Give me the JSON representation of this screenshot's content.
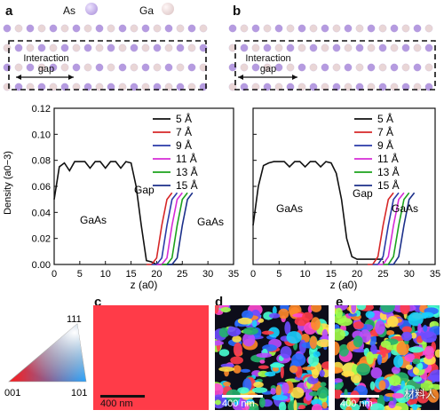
{
  "panels": {
    "a": "a",
    "b": "b",
    "c": "c",
    "d": "d",
    "e": "e"
  },
  "atoms": {
    "as_label": "As",
    "ga_label": "Ga",
    "as_color": "#b59be0",
    "ga_color": "#e9d6d6",
    "interaction_gap_line1": "Interaction",
    "interaction_gap_line2": "gap"
  },
  "plot_common": {
    "x_ticks": [
      "0",
      "5",
      "10",
      "15",
      "20",
      "25",
      "30",
      "35"
    ],
    "y_ticks": [
      "0.00",
      "0.02",
      "0.04",
      "0.06",
      "0.08",
      "0.10",
      "0.12"
    ],
    "xlabel_left": "z (a",
    "xlabel_sub": "0",
    "xlabel_right": ")",
    "ylabel": "Density (a",
    "ylabel_sub": "0",
    "ylabel_sup": "−3",
    "ylabel_end": ")",
    "gap_text": "Gap",
    "gaas_text": "GaAs"
  },
  "chart_data": [
    {
      "type": "line",
      "title": "",
      "xlabel": "z (a0)",
      "ylabel": "Density (a0^-3)",
      "xlim": [
        0,
        35
      ],
      "ylim": [
        0,
        0.12
      ],
      "series": [
        {
          "name": "5 Å",
          "color": "#111111",
          "x": [
            0,
            1,
            2,
            3,
            4,
            5,
            6,
            7,
            8,
            9,
            10,
            11,
            12,
            13,
            14,
            15,
            16,
            17,
            18,
            19,
            20,
            21,
            22,
            23,
            24,
            25
          ],
          "y": [
            0.05,
            0.075,
            0.078,
            0.072,
            0.079,
            0.079,
            0.079,
            0.074,
            0.079,
            0.079,
            0.074,
            0.079,
            0.079,
            0.074,
            0.079,
            0.078,
            0.06,
            0.03,
            0.003,
            0.002,
            0.0,
            0.0,
            0.0,
            0.0,
            0.0,
            0.0
          ]
        },
        {
          "name": "7 Å",
          "color": "#d62728",
          "x": [
            18,
            19,
            20,
            21,
            22,
            23
          ],
          "y": [
            0.0,
            0.0,
            0.005,
            0.03,
            0.05,
            0.055
          ]
        },
        {
          "name": "9 Å",
          "color": "#2a3aa8",
          "x": [
            19,
            20,
            21,
            22,
            23,
            24
          ],
          "y": [
            0.0,
            0.0,
            0.005,
            0.03,
            0.05,
            0.055
          ]
        },
        {
          "name": "11 Å",
          "color": "#d62bd6",
          "x": [
            20,
            21,
            22,
            23,
            24,
            25
          ],
          "y": [
            0.0,
            0.0,
            0.005,
            0.03,
            0.05,
            0.055
          ]
        },
        {
          "name": "13 Å",
          "color": "#1ca21c",
          "x": [
            21,
            22,
            23,
            24,
            25,
            26
          ],
          "y": [
            0.0,
            0.0,
            0.005,
            0.03,
            0.05,
            0.055
          ]
        },
        {
          "name": "15 Å",
          "color": "#1b2f8a",
          "x": [
            22,
            23,
            24,
            25,
            26,
            27
          ],
          "y": [
            0.0,
            0.0,
            0.005,
            0.03,
            0.05,
            0.055
          ]
        }
      ]
    },
    {
      "type": "line",
      "title": "",
      "xlabel": "z (a0)",
      "ylabel": "",
      "xlim": [
        0,
        35
      ],
      "ylim": [
        0,
        0.12
      ],
      "series": [
        {
          "name": "5 Å",
          "color": "#111111",
          "x": [
            0,
            1,
            2,
            3,
            4,
            5,
            6,
            7,
            8,
            9,
            10,
            11,
            12,
            13,
            14,
            15,
            16,
            17,
            18,
            19,
            20,
            21,
            22,
            23,
            24,
            25
          ],
          "y": [
            0.03,
            0.06,
            0.076,
            0.078,
            0.079,
            0.079,
            0.079,
            0.075,
            0.079,
            0.079,
            0.075,
            0.079,
            0.079,
            0.075,
            0.079,
            0.078,
            0.07,
            0.05,
            0.02,
            0.006,
            0.004,
            0.004,
            0.004,
            0.004,
            0.004,
            0.004
          ]
        },
        {
          "name": "7 Å",
          "color": "#d62728",
          "x": [
            22,
            23,
            24,
            25,
            26,
            27
          ],
          "y": [
            0.0,
            0.0,
            0.006,
            0.03,
            0.05,
            0.055
          ]
        },
        {
          "name": "9 Å",
          "color": "#2a3aa8",
          "x": [
            23,
            24,
            25,
            26,
            27,
            28
          ],
          "y": [
            0.0,
            0.0,
            0.006,
            0.03,
            0.05,
            0.055
          ]
        },
        {
          "name": "11 Å",
          "color": "#d62bd6",
          "x": [
            24,
            25,
            26,
            27,
            28,
            29
          ],
          "y": [
            0.0,
            0.0,
            0.006,
            0.03,
            0.05,
            0.055
          ]
        },
        {
          "name": "13 Å",
          "color": "#1ca21c",
          "x": [
            25,
            26,
            27,
            28,
            29,
            30
          ],
          "y": [
            0.0,
            0.0,
            0.006,
            0.03,
            0.05,
            0.055
          ]
        },
        {
          "name": "15 Å",
          "color": "#1b2f8a",
          "x": [
            26,
            27,
            28,
            29,
            30,
            31
          ],
          "y": [
            0.0,
            0.0,
            0.006,
            0.03,
            0.05,
            0.055
          ]
        }
      ]
    }
  ],
  "triangle": {
    "top": "111",
    "left": "001",
    "right": "101"
  },
  "scalebars": {
    "c": "400 nm",
    "d": "400 nm",
    "e": "400 nm"
  },
  "watermark": "材料人",
  "colors": {
    "panel_c_bg": "#ff3b48"
  }
}
